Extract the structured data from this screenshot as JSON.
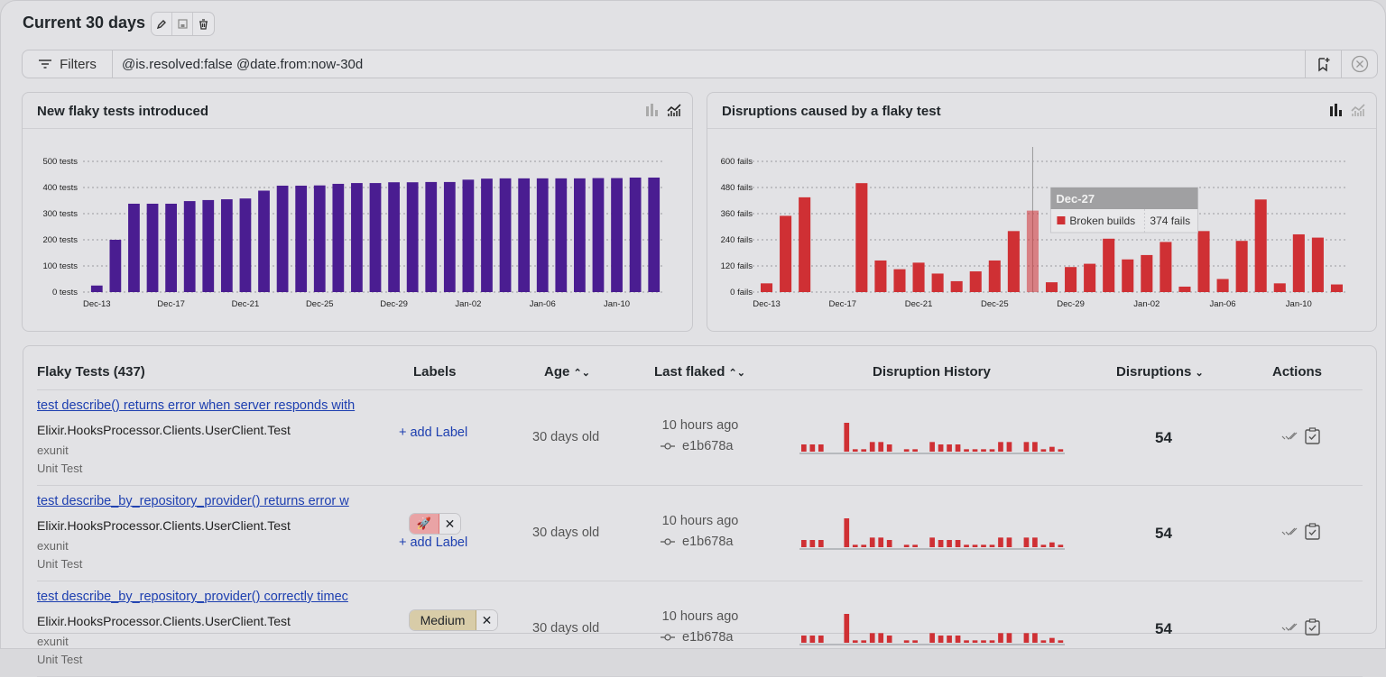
{
  "header": {
    "title": "Current 30 days",
    "icons": [
      "pencil-icon",
      "save-icon",
      "trash-icon"
    ]
  },
  "filters": {
    "button_label": "Filters",
    "query": "@is.resolved:false @date.from:now-30d",
    "icons": [
      "filter-lines-icon",
      "bookmark-add-icon",
      "clear-circle-icon"
    ]
  },
  "colors": {
    "purple": "#4a1d91",
    "red": "#cf3034",
    "link": "#1d3fb0"
  },
  "chart_data": [
    {
      "type": "bar",
      "title": "New flaky tests introduced",
      "active_view": "cumulative-line",
      "ylim": [
        0,
        500
      ],
      "yticks": [
        "0 tests",
        "100 tests",
        "200 tests",
        "300 tests",
        "400 tests",
        "500 tests"
      ],
      "ytick_values": [
        0,
        100,
        200,
        300,
        400,
        500
      ],
      "grid": true,
      "categories": [
        "Dec-13",
        "Dec-14",
        "Dec-15",
        "Dec-16",
        "Dec-17",
        "Dec-18",
        "Dec-19",
        "Dec-20",
        "Dec-21",
        "Dec-22",
        "Dec-23",
        "Dec-24",
        "Dec-25",
        "Dec-26",
        "Dec-27",
        "Dec-28",
        "Dec-29",
        "Dec-30",
        "Dec-31",
        "Jan-01",
        "Jan-02",
        "Jan-03",
        "Jan-04",
        "Jan-05",
        "Jan-06",
        "Jan-07",
        "Jan-08",
        "Jan-09",
        "Jan-10",
        "Jan-11",
        "Jan-12"
      ],
      "xtick_labels": [
        "Dec-13",
        "Dec-17",
        "Dec-21",
        "Dec-25",
        "Dec-29",
        "Jan-02",
        "Jan-06",
        "Jan-10"
      ],
      "values": [
        25,
        200,
        338,
        338,
        338,
        348,
        352,
        355,
        358,
        388,
        407,
        407,
        408,
        414,
        417,
        417,
        420,
        420,
        421,
        421,
        430,
        434,
        435,
        435,
        435,
        435,
        435,
        436,
        436,
        438,
        438
      ],
      "color": "#4a1d91"
    },
    {
      "type": "bar",
      "title": "Disruptions caused by a flaky test",
      "active_view": "bar",
      "ylim": [
        0,
        600
      ],
      "yticks": [
        "0 fails",
        "120 fails",
        "240 fails",
        "360 fails",
        "480 fails",
        "600 fails"
      ],
      "ytick_values": [
        0,
        120,
        240,
        360,
        480,
        600
      ],
      "grid": true,
      "categories": [
        "Dec-13",
        "Dec-14",
        "Dec-15",
        "Dec-16",
        "Dec-17",
        "Dec-18",
        "Dec-19",
        "Dec-20",
        "Dec-21",
        "Dec-22",
        "Dec-23",
        "Dec-24",
        "Dec-25",
        "Dec-26",
        "Dec-27",
        "Dec-28",
        "Dec-29",
        "Dec-30",
        "Dec-31",
        "Jan-01",
        "Jan-02",
        "Jan-03",
        "Jan-04",
        "Jan-05",
        "Jan-06",
        "Jan-07",
        "Jan-08",
        "Jan-09",
        "Jan-10",
        "Jan-11",
        "Jan-12"
      ],
      "xtick_labels": [
        "Dec-13",
        "Dec-17",
        "Dec-21",
        "Dec-25",
        "Dec-29",
        "Jan-02",
        "Jan-06",
        "Jan-10"
      ],
      "values": [
        40,
        350,
        435,
        0,
        0,
        500,
        145,
        105,
        135,
        85,
        50,
        95,
        145,
        280,
        374,
        45,
        115,
        130,
        245,
        150,
        170,
        230,
        25,
        280,
        60,
        235,
        425,
        40,
        265,
        250,
        35
      ],
      "color": "#cf3034",
      "tooltip": {
        "date": "Dec-27",
        "series": "Broken builds",
        "value": "374 fails"
      },
      "highlighted": "Dec-27"
    }
  ],
  "table": {
    "title": "Flaky Tests (437)",
    "columns": {
      "labels": "Labels",
      "age": "Age",
      "last_flaked": "Last flaked",
      "history": "Disruption History",
      "disruptions": "Disruptions",
      "actions": "Actions"
    },
    "add_label": "+ add Label",
    "rows": [
      {
        "name": "test describe() returns error when server responds with",
        "suite": "Elixir.HooksProcessor.Clients.UserClient.Test",
        "framework": "exunit",
        "type": "Unit Test",
        "labels": [],
        "age": "30 days old",
        "last_flaked": "10 hours ago",
        "commit": "e1b678a",
        "disruptions": "54",
        "history": [
          3,
          3,
          3,
          0,
          0,
          12,
          1,
          1,
          4,
          4,
          3,
          0,
          1,
          1,
          0,
          4,
          3,
          3,
          3,
          1,
          1,
          1,
          1,
          4,
          4,
          0,
          4,
          4,
          1,
          2,
          1
        ]
      },
      {
        "name": "test describe_by_repository_provider() returns error w",
        "suite": "Elixir.HooksProcessor.Clients.UserClient.Test",
        "framework": "exunit",
        "type": "Unit Test",
        "labels": [
          "🚀"
        ],
        "age": "30 days old",
        "last_flaked": "10 hours ago",
        "commit": "e1b678a",
        "disruptions": "54",
        "history": [
          3,
          3,
          3,
          0,
          0,
          12,
          1,
          1,
          4,
          4,
          3,
          0,
          1,
          1,
          0,
          4,
          3,
          3,
          3,
          1,
          1,
          1,
          1,
          4,
          4,
          0,
          4,
          4,
          1,
          2,
          1
        ]
      },
      {
        "name": "test describe_by_repository_provider() correctly timec",
        "suite": "Elixir.HooksProcessor.Clients.UserClient.Test",
        "framework": "exunit",
        "type": "Unit Test",
        "labels": [
          "Medium"
        ],
        "age": "30 days old",
        "last_flaked": "10 hours ago",
        "commit": "e1b678a",
        "disruptions": "54",
        "history": [
          3,
          3,
          3,
          0,
          0,
          12,
          1,
          1,
          4,
          4,
          3,
          0,
          1,
          1,
          0,
          4,
          3,
          3,
          3,
          1,
          1,
          1,
          1,
          4,
          4,
          0,
          4,
          4,
          1,
          2,
          1
        ]
      }
    ]
  }
}
